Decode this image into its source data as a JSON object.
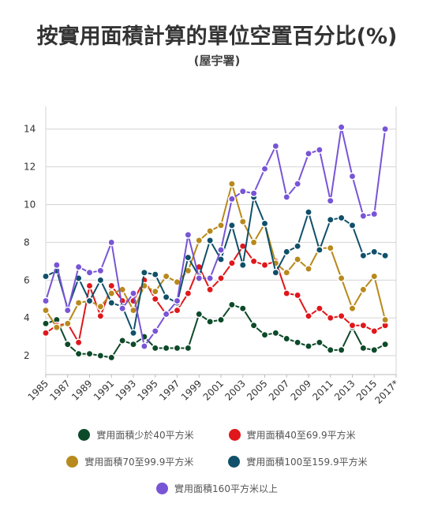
{
  "header": {
    "title": "按實用面積計算的單位空置百分比(%)",
    "subtitle": "(屋宇署)"
  },
  "chart_data": {
    "type": "line",
    "title": "按實用面積計算的單位空置百分比(%)",
    "subtitle": "(屋宇署)",
    "xlabel": "",
    "ylabel": "",
    "x_tick_labels": [
      "1985",
      "1987",
      "1989",
      "1991",
      "1993",
      "1995",
      "1997",
      "1999",
      "2001",
      "2003",
      "2005",
      "2007",
      "2009",
      "2011",
      "2013",
      "2015",
      "2017*"
    ],
    "y_ticks": [
      2,
      4,
      6,
      8,
      10,
      12,
      14
    ],
    "ylim": [
      1,
      15.2
    ],
    "grid": true,
    "legend_position": "bottom",
    "x": [
      1985,
      1986,
      1987,
      1988,
      1989,
      1990,
      1991,
      1992,
      1993,
      1994,
      1995,
      1996,
      1997,
      1998,
      1999,
      2000,
      2001,
      2002,
      2003,
      2004,
      2005,
      2006,
      2007,
      2008,
      2009,
      2010,
      2011,
      2012,
      2013,
      2014,
      2015,
      2016,
      2017
    ],
    "series": [
      {
        "name": "實用面積少於40平方米",
        "color": "#0d4a2a",
        "values": [
          3.7,
          3.9,
          2.6,
          2.1,
          2.1,
          2.0,
          1.9,
          2.8,
          2.6,
          3.0,
          2.4,
          2.4,
          2.4,
          2.4,
          4.2,
          3.8,
          3.9,
          4.7,
          4.5,
          3.6,
          3.1,
          3.2,
          2.9,
          2.7,
          2.5,
          2.7,
          2.3,
          2.3,
          3.5,
          2.4,
          2.3,
          2.6,
          null
        ]
      },
      {
        "name": "實用面積40至69.9平方米",
        "color": "#e0171b",
        "values": [
          3.2,
          3.6,
          3.7,
          2.7,
          5.7,
          4.1,
          5.7,
          4.9,
          4.9,
          6.0,
          5.0,
          4.2,
          4.4,
          5.3,
          6.7,
          5.5,
          6.1,
          6.9,
          7.8,
          7.0,
          6.8,
          7.0,
          5.3,
          5.2,
          4.1,
          4.5,
          4.0,
          4.1,
          3.6,
          3.6,
          3.3,
          3.6,
          null
        ]
      },
      {
        "name": "實用面積70至99.9平方米",
        "color": "#b8891c",
        "values": [
          4.4,
          3.5,
          3.7,
          4.8,
          4.9,
          4.6,
          5.3,
          5.5,
          4.4,
          5.7,
          5.4,
          6.2,
          5.9,
          6.5,
          8.1,
          8.6,
          8.9,
          11.1,
          9.1,
          8.0,
          9.0,
          6.9,
          6.4,
          7.1,
          6.6,
          7.7,
          7.7,
          6.1,
          4.5,
          5.5,
          6.2,
          3.9,
          null
        ]
      },
      {
        "name": "實用面積100至159.9平方米",
        "color": "#10506a",
        "values": [
          6.2,
          6.5,
          4.5,
          6.1,
          4.9,
          6.0,
          4.8,
          4.6,
          3.2,
          6.4,
          6.3,
          5.1,
          4.8,
          7.2,
          6.2,
          8.1,
          7.1,
          8.9,
          6.8,
          10.4,
          9.0,
          6.4,
          7.5,
          7.8,
          9.6,
          7.6,
          9.2,
          9.3,
          8.9,
          7.3,
          7.5,
          7.3,
          null
        ]
      },
      {
        "name": "實用面積160平方米以上",
        "color": "#7855d6",
        "values": [
          4.9,
          6.8,
          4.4,
          6.7,
          6.4,
          6.5,
          8.0,
          4.5,
          5.3,
          2.5,
          3.3,
          4.2,
          4.9,
          8.4,
          6.1,
          6.1,
          7.6,
          10.3,
          10.7,
          10.6,
          11.9,
          13.1,
          10.4,
          11.1,
          12.7,
          12.9,
          10.2,
          14.1,
          11.5,
          9.4,
          9.5,
          14.0,
          null
        ]
      }
    ]
  }
}
